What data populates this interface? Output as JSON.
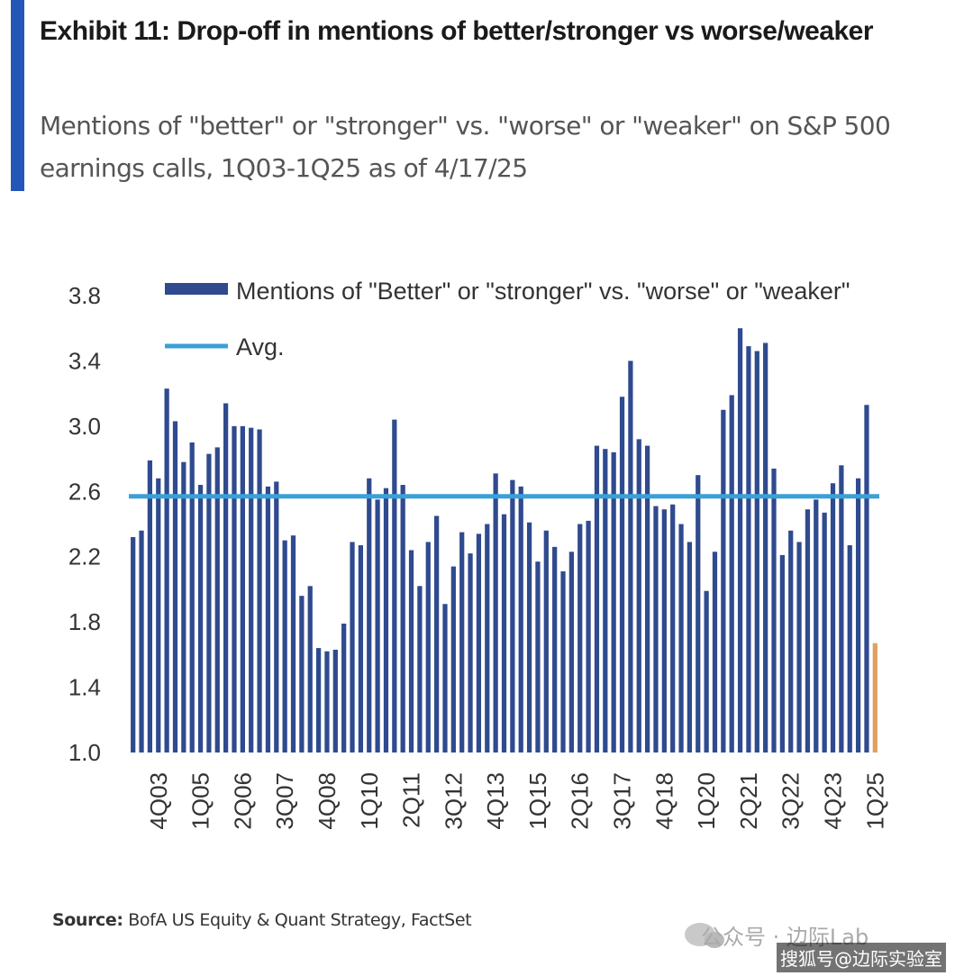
{
  "header": {
    "title": "Exhibit 11: Drop-off in mentions of better/stronger vs worse/weaker",
    "subtitle": "Mentions of \"better\" or \"stronger\" vs. \"worse\" or \"weaker\" on S&P 500 earnings calls, 1Q03-1Q25 as of 4/17/25"
  },
  "footer": {
    "source_label": "Source:",
    "source_text": " BofA US Equity & Quant Strategy, FactSet",
    "watermark": "公众号 · 边际Lab",
    "watermark2": "搜狐号@边际实验室"
  },
  "colors": {
    "bar": "#2f4a8e",
    "last_bar": "#e0a060",
    "avg": "#3aa0d8",
    "accent": "#2456b8"
  },
  "chart_data": {
    "type": "bar",
    "ylim": [
      1.0,
      3.8
    ],
    "yticks": [
      "1.0",
      "1.4",
      "1.8",
      "2.2",
      "2.6",
      "3.0",
      "3.4",
      "3.8"
    ],
    "xtick_labels": [
      "4Q03",
      "1Q05",
      "2Q06",
      "3Q07",
      "4Q08",
      "1Q10",
      "2Q11",
      "3Q12",
      "4Q13",
      "1Q15",
      "2Q16",
      "3Q17",
      "4Q18",
      "1Q20",
      "2Q21",
      "3Q22",
      "4Q23",
      "1Q25"
    ],
    "legend": [
      "Mentions of \"Better\" or \"stronger\" vs. \"worse\" or \"weaker\"",
      "Avg."
    ],
    "legend_position": "top",
    "average": 2.57,
    "series": [
      {
        "name": "Mentions of \"Better\" or \"stronger\" vs. \"worse\" or \"weaker\"",
        "values": [
          2.32,
          2.36,
          2.79,
          2.68,
          3.23,
          3.03,
          2.78,
          2.9,
          2.64,
          2.83,
          2.87,
          3.14,
          3.0,
          3.0,
          2.99,
          2.98,
          2.63,
          2.66,
          2.3,
          2.33,
          1.96,
          2.02,
          1.64,
          1.62,
          1.63,
          1.79,
          2.29,
          2.27,
          2.68,
          2.55,
          2.62,
          3.04,
          2.64,
          2.24,
          2.02,
          2.29,
          2.45,
          1.91,
          2.14,
          2.35,
          2.22,
          2.34,
          2.4,
          2.71,
          2.46,
          2.67,
          2.63,
          2.41,
          2.17,
          2.36,
          2.26,
          2.11,
          2.23,
          2.4,
          2.42,
          2.88,
          2.86,
          2.84,
          3.18,
          3.4,
          2.92,
          2.88,
          2.51,
          2.49,
          2.52,
          2.4,
          2.29,
          2.7,
          1.99,
          2.23,
          3.1,
          3.19,
          3.6,
          3.49,
          3.46,
          3.51,
          2.74,
          2.21,
          2.36,
          2.29,
          2.49,
          2.55,
          2.47,
          2.65,
          2.76,
          2.27,
          2.68,
          3.13,
          1.67
        ]
      }
    ]
  }
}
